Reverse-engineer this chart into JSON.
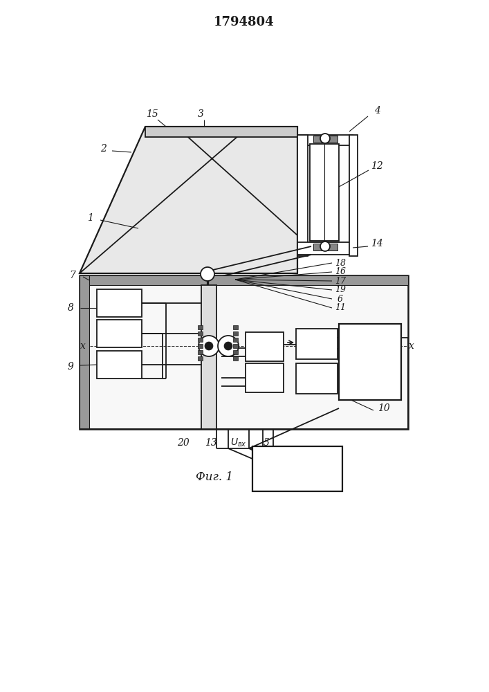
{
  "title": "1794804",
  "fig_label": "Фиг. 1",
  "bg": "#ffffff",
  "lc": "#1a1a1a",
  "lw": 1.3,
  "gray_hatch": "#888888",
  "light_gray": "#e8e8e8"
}
